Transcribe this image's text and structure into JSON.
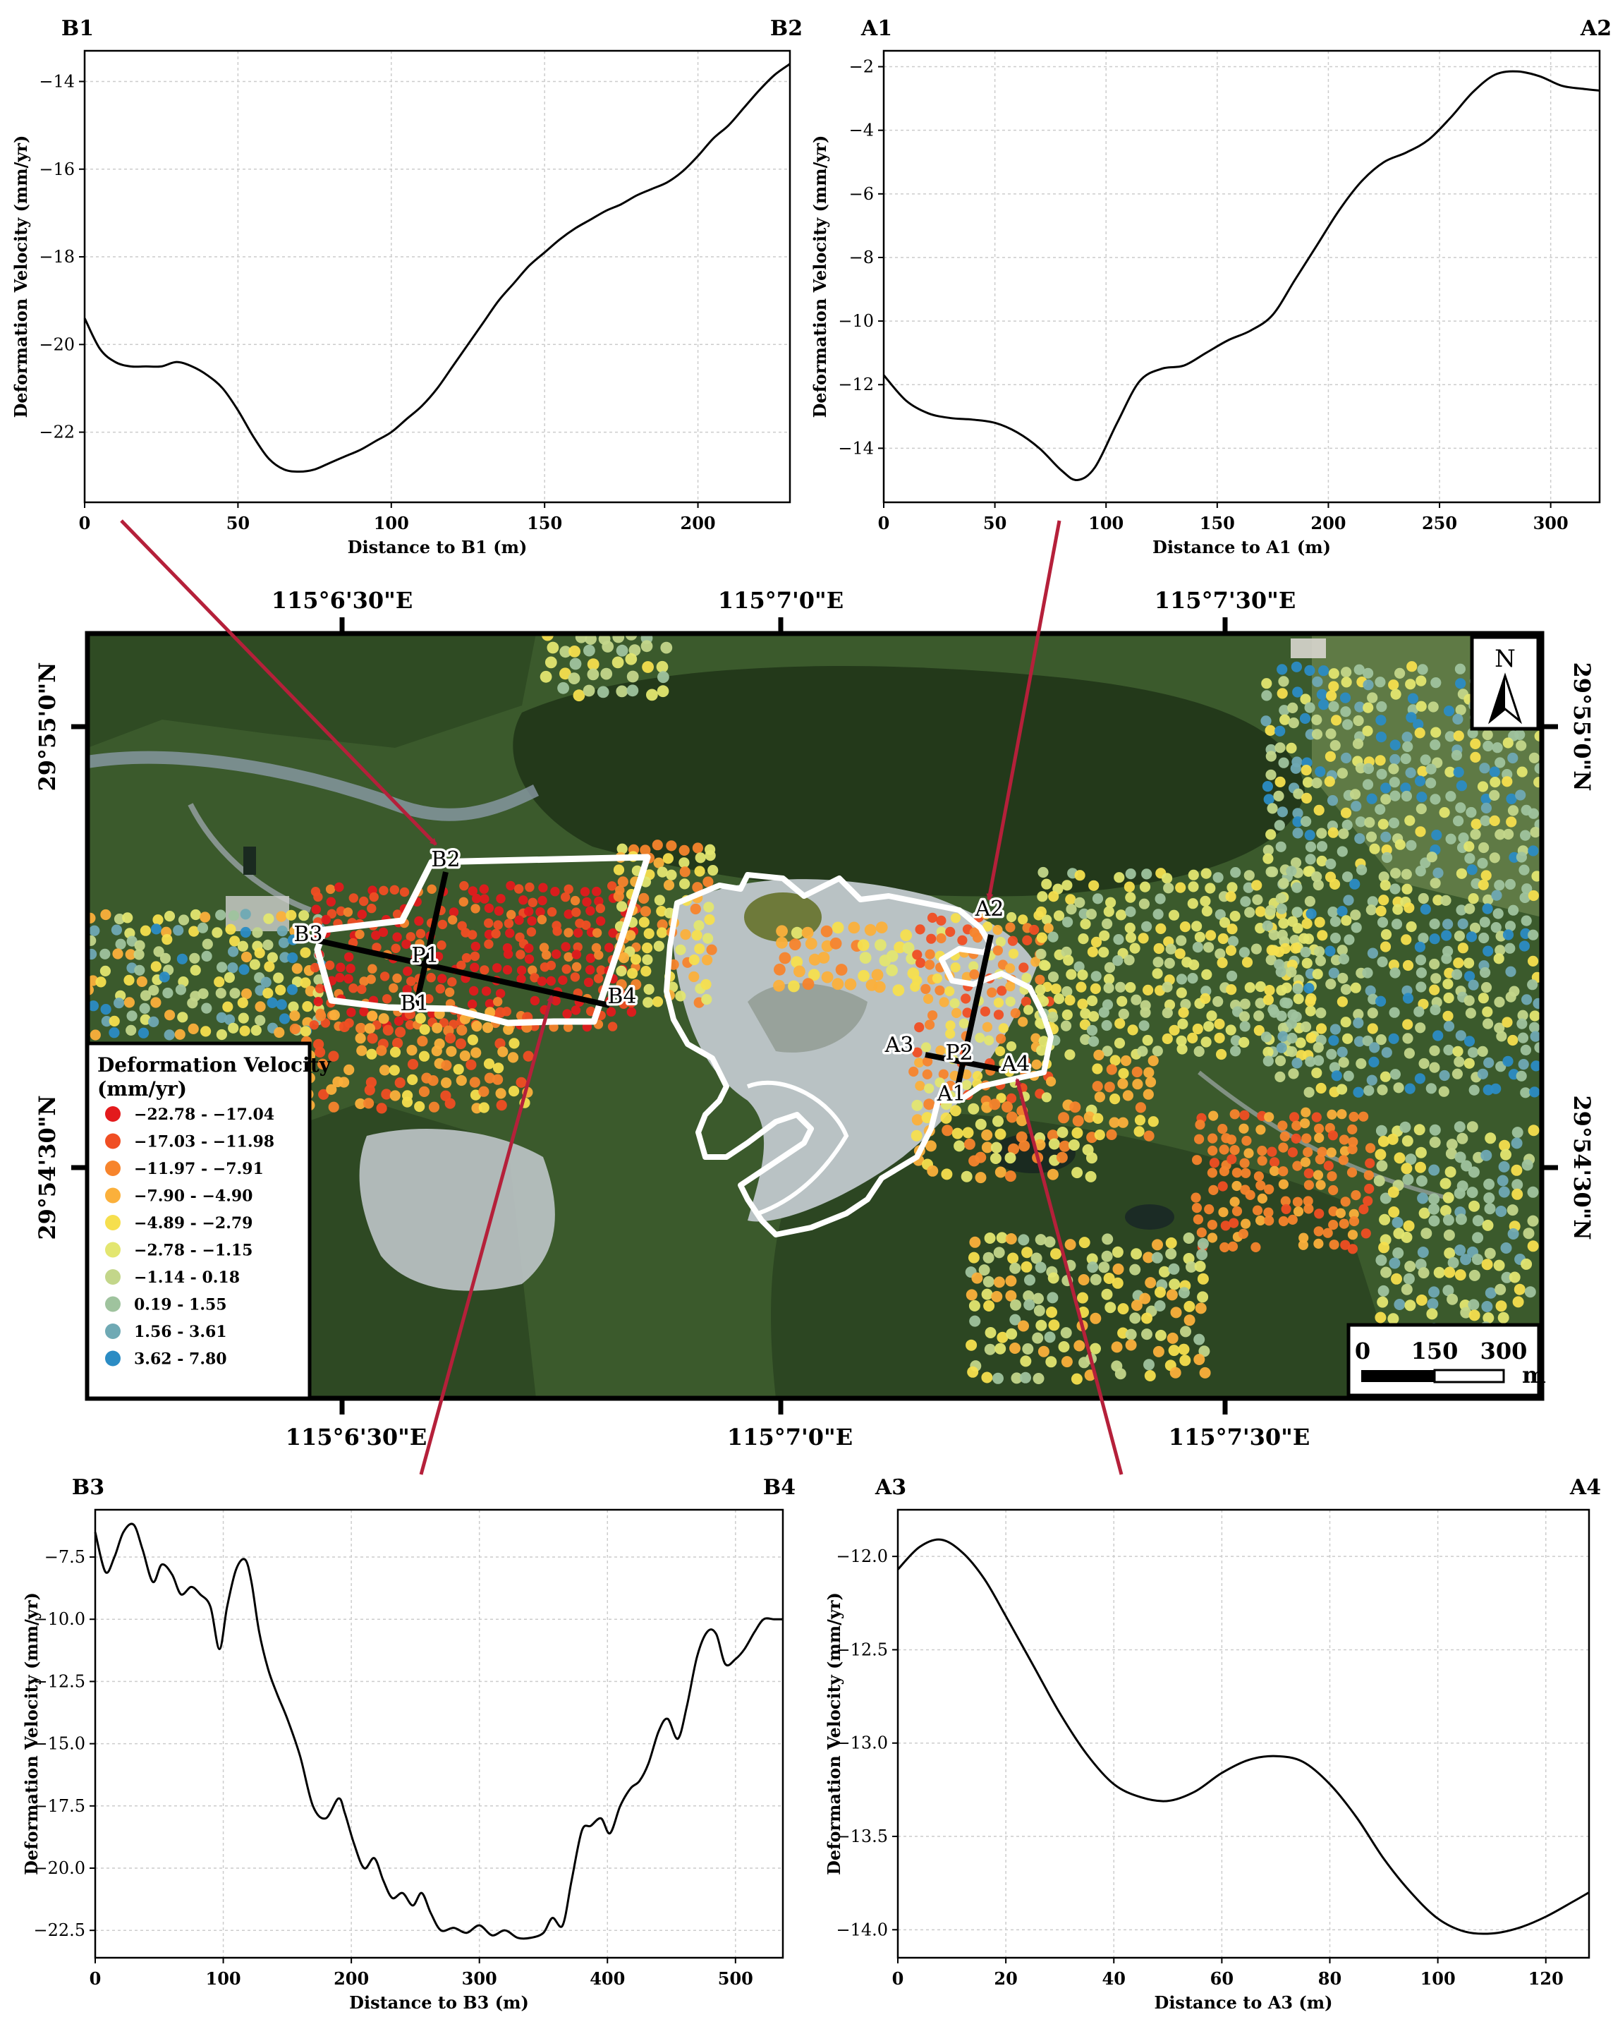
{
  "profiles": [
    {
      "id": "b1b2",
      "end_left": "B1",
      "end_right": "B2",
      "xlabel": "Distance to B1 (m)",
      "ylabel": "Deformation Velocity (mm/yr)",
      "xlim": [
        0,
        230
      ],
      "ylim": [
        -23.6,
        -13.3
      ],
      "xticks": [
        0,
        50,
        100,
        150,
        200
      ],
      "xtick_labels": [
        "0",
        "50",
        "100",
        "150",
        "200"
      ],
      "yticks": [
        -22,
        -20,
        -18,
        -16,
        -14
      ],
      "ytick_labels": [
        "−22",
        "−20",
        "−18",
        "−16",
        "−14"
      ],
      "x": [
        0,
        5,
        10,
        15,
        20,
        25,
        30,
        35,
        40,
        45,
        50,
        55,
        60,
        65,
        70,
        75,
        80,
        85,
        90,
        95,
        100,
        105,
        110,
        115,
        120,
        125,
        130,
        135,
        140,
        145,
        150,
        155,
        160,
        165,
        170,
        175,
        180,
        185,
        190,
        195,
        200,
        205,
        210,
        215,
        220,
        225,
        230
      ],
      "y": [
        -19.4,
        -20.1,
        -20.4,
        -20.5,
        -20.5,
        -20.5,
        -20.4,
        -20.5,
        -20.7,
        -21.0,
        -21.5,
        -22.1,
        -22.6,
        -22.85,
        -22.9,
        -22.85,
        -22.7,
        -22.55,
        -22.4,
        -22.2,
        -22.0,
        -21.7,
        -21.4,
        -21.0,
        -20.5,
        -20.0,
        -19.5,
        -19.0,
        -18.6,
        -18.2,
        -17.9,
        -17.6,
        -17.35,
        -17.15,
        -16.95,
        -16.8,
        -16.6,
        -16.45,
        -16.3,
        -16.05,
        -15.7,
        -15.3,
        -15.0,
        -14.6,
        -14.2,
        -13.85,
        -13.6
      ]
    },
    {
      "id": "a1a2",
      "end_left": "A1",
      "end_right": "A2",
      "xlabel": "Distance to A1 (m)",
      "ylabel": "Deformation Velocity (mm/yr)",
      "xlim": [
        0,
        322
      ],
      "ylim": [
        -15.7,
        -1.5
      ],
      "xticks": [
        0,
        50,
        100,
        150,
        200,
        250,
        300
      ],
      "xtick_labels": [
        "0",
        "50",
        "100",
        "150",
        "200",
        "250",
        "300"
      ],
      "yticks": [
        -14,
        -12,
        -10,
        -8,
        -6,
        -4,
        -2
      ],
      "ytick_labels": [
        "−14",
        "−12",
        "−10",
        "−8",
        "−6",
        "−4",
        "−2"
      ],
      "x": [
        0,
        10,
        20,
        30,
        40,
        50,
        60,
        70,
        80,
        87,
        95,
        105,
        115,
        125,
        135,
        145,
        155,
        165,
        175,
        185,
        195,
        205,
        215,
        225,
        235,
        245,
        255,
        265,
        275,
        285,
        295,
        305,
        315,
        322
      ],
      "y": [
        -11.7,
        -12.5,
        -12.9,
        -13.05,
        -13.1,
        -13.2,
        -13.5,
        -14.0,
        -14.7,
        -15.0,
        -14.6,
        -13.2,
        -11.9,
        -11.5,
        -11.4,
        -11.0,
        -10.6,
        -10.3,
        -9.8,
        -8.7,
        -7.6,
        -6.5,
        -5.6,
        -5.0,
        -4.7,
        -4.3,
        -3.6,
        -2.8,
        -2.25,
        -2.15,
        -2.3,
        -2.6,
        -2.7,
        -2.75
      ]
    },
    {
      "id": "b3b4",
      "end_left": "B3",
      "end_right": "B4",
      "xlabel": "Distance to B3 (m)",
      "ylabel": "Deformation Velocity (mm/yr)",
      "xlim": [
        0,
        537
      ],
      "ylim": [
        -23.6,
        -5.6
      ],
      "xticks": [
        0,
        100,
        200,
        300,
        400,
        500
      ],
      "xtick_labels": [
        "0",
        "100",
        "200",
        "300",
        "400",
        "500"
      ],
      "yticks": [
        -22.5,
        -20.0,
        -17.5,
        -15.0,
        -12.5,
        -10.0,
        -7.5
      ],
      "ytick_labels": [
        "−22.5",
        "−20.0",
        "−17.5",
        "−15.0",
        "−12.5",
        "−10.0",
        "−7.5"
      ],
      "x": [
        0,
        8,
        15,
        22,
        30,
        37,
        45,
        52,
        60,
        67,
        75,
        82,
        90,
        97,
        103,
        110,
        117,
        122,
        128,
        135,
        142,
        150,
        160,
        170,
        180,
        190,
        195,
        202,
        210,
        218,
        225,
        232,
        240,
        248,
        255,
        262,
        270,
        280,
        290,
        300,
        310,
        320,
        330,
        340,
        350,
        357,
        365,
        372,
        380,
        387,
        395,
        402,
        410,
        418,
        425,
        432,
        440,
        447,
        455,
        462,
        470,
        478,
        485,
        492,
        500,
        507,
        515,
        522,
        530,
        537
      ],
      "y": [
        -6.5,
        -8.1,
        -7.5,
        -6.5,
        -6.2,
        -7.2,
        -8.5,
        -7.8,
        -8.2,
        -9.0,
        -8.7,
        -9.0,
        -9.5,
        -11.2,
        -9.5,
        -8.0,
        -7.6,
        -8.5,
        -10.5,
        -12.0,
        -13.0,
        -14.0,
        -15.5,
        -17.5,
        -18.0,
        -17.2,
        -17.8,
        -19.0,
        -20.0,
        -19.6,
        -20.5,
        -21.2,
        -21.0,
        -21.5,
        -21.0,
        -21.8,
        -22.5,
        -22.4,
        -22.6,
        -22.3,
        -22.7,
        -22.5,
        -22.8,
        -22.8,
        -22.6,
        -22.0,
        -22.3,
        -20.5,
        -18.5,
        -18.3,
        -18.0,
        -18.6,
        -17.5,
        -16.8,
        -16.5,
        -15.8,
        -14.5,
        -14.0,
        -14.8,
        -13.5,
        -11.5,
        -10.5,
        -10.6,
        -11.8,
        -11.6,
        -11.2,
        -10.5,
        -10.0,
        -10.0,
        -10.0
      ]
    },
    {
      "id": "a3a4",
      "end_left": "A3",
      "end_right": "A4",
      "xlabel": "Distance to A3 (m)",
      "ylabel": "Deformation Velocity (mm/yr)",
      "xlim": [
        0,
        128
      ],
      "ylim": [
        -14.15,
        -11.75
      ],
      "xticks": [
        0,
        20,
        40,
        60,
        80,
        100,
        120
      ],
      "xtick_labels": [
        "0",
        "20",
        "40",
        "60",
        "80",
        "100",
        "120"
      ],
      "yticks": [
        -14.0,
        -13.5,
        -13.0,
        -12.5,
        -12.0
      ],
      "ytick_labels": [
        "−14.0",
        "−13.5",
        "−13.0",
        "−12.5",
        "−12.0"
      ],
      "x": [
        0,
        4,
        8,
        12,
        16,
        20,
        25,
        30,
        35,
        40,
        45,
        50,
        55,
        60,
        65,
        70,
        75,
        80,
        85,
        90,
        95,
        100,
        105,
        110,
        115,
        120,
        125,
        128
      ],
      "y": [
        -12.07,
        -11.95,
        -11.91,
        -11.98,
        -12.12,
        -12.32,
        -12.58,
        -12.84,
        -13.06,
        -13.22,
        -13.29,
        -13.31,
        -13.26,
        -13.16,
        -13.09,
        -13.07,
        -13.1,
        -13.22,
        -13.4,
        -13.62,
        -13.8,
        -13.94,
        -14.01,
        -14.02,
        -13.99,
        -13.93,
        -13.85,
        -13.8
      ]
    }
  ],
  "map": {
    "lon_top": [
      "115°6'30\"E",
      "115°7'0\"E",
      "115°7'30\"E"
    ],
    "lon_bottom": [
      "115°6'30\"E",
      "115°7'0\"E",
      "115°7'30\"E"
    ],
    "lat_left": [
      "29°55'0\"N",
      "29°54'30\"N"
    ],
    "lat_right": [
      "29°55'0\"N",
      "29°54'30\"N"
    ],
    "north_label": "N",
    "scale_labels": [
      "0",
      "150",
      "300"
    ],
    "scale_unit": "m",
    "profile_labels": {
      "B1": "B1",
      "B2": "B2",
      "B3": "B3",
      "B4": "B4",
      "A1": "A1",
      "A2": "A2",
      "A3": "A3",
      "A4": "A4",
      "P1": "P1",
      "P2": "P2"
    }
  },
  "legend": {
    "title_line1": "Deformation Velocity",
    "title_line2": "(mm/yr)",
    "classes": [
      {
        "label": "−22.78 - −17.04",
        "color": "#e31a1c"
      },
      {
        "label": "−17.03 - −11.98",
        "color": "#f04e23"
      },
      {
        "label": "−11.97 - −7.91",
        "color": "#f7842c"
      },
      {
        "label": "−7.90 - −4.90",
        "color": "#fbb03b"
      },
      {
        "label": "−4.89 - −2.79",
        "color": "#f6df4e"
      },
      {
        "label": "−2.78 - −1.15",
        "color": "#e3e670"
      },
      {
        "label": "−1.14 - 0.18",
        "color": "#c3d68a"
      },
      {
        "label": "0.19 - 1.55",
        "color": "#9fc39e"
      },
      {
        "label": "1.56 - 3.61",
        "color": "#6fa9b4"
      },
      {
        "label": "3.62 - 7.80",
        "color": "#2b8cc4"
      }
    ]
  },
  "colors": {
    "arrow": "#b5203a",
    "line": "#000000",
    "grid": "#cccccc"
  }
}
